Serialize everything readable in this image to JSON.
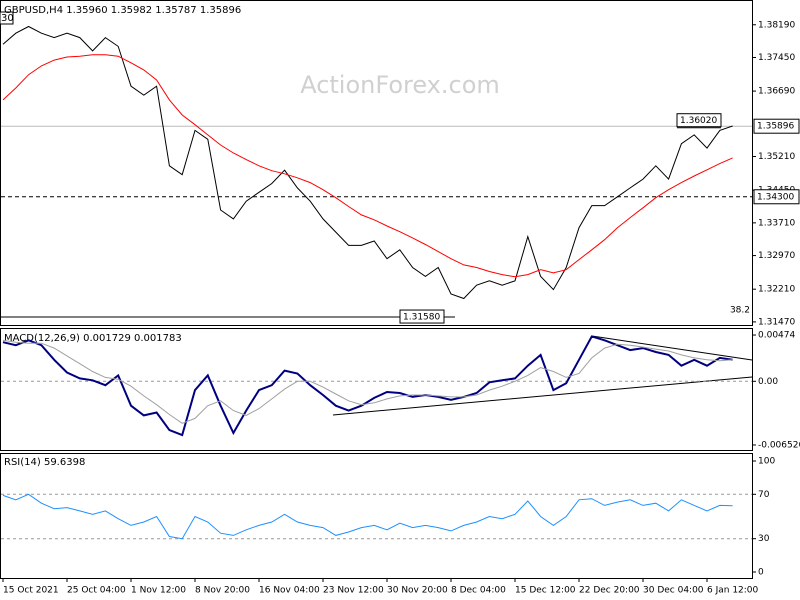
{
  "chart_data": [
    {
      "type": "line",
      "title": "GBPUSD,H4  1.35960 1.35982 1.35787 1.35896",
      "watermark": "ActionForex.com",
      "categories": [
        "15 Oct 2021",
        null,
        null,
        null,
        null,
        "25 Oct 04:00",
        null,
        null,
        null,
        null,
        "1 Nov 12:00",
        null,
        null,
        null,
        null,
        "8 Nov 20:00",
        null,
        null,
        null,
        null,
        "16 Nov 04:00",
        null,
        null,
        null,
        null,
        "23 Nov 12:00",
        null,
        null,
        null,
        null,
        "30 Nov 20:00",
        null,
        null,
        null,
        null,
        "8 Dec 04:00",
        null,
        null,
        null,
        null,
        "15 Dec 12:00",
        null,
        null,
        null,
        null,
        "22 Dec 20:00",
        null,
        null,
        null,
        null,
        "30 Dec 04:00",
        null,
        null,
        null,
        null,
        "6 Jan 12:00",
        null,
        null
      ],
      "series": [
        {
          "color": "#000000",
          "values": [
            1.3775,
            1.38,
            1.3815,
            1.38,
            1.379,
            1.38,
            1.379,
            1.376,
            1.379,
            1.377,
            1.368,
            1.366,
            1.368,
            1.35,
            1.348,
            1.358,
            1.356,
            1.34,
            1.338,
            1.342,
            1.344,
            1.346,
            1.349,
            1.345,
            1.342,
            1.338,
            1.335,
            1.332,
            1.332,
            1.333,
            1.329,
            1.331,
            1.327,
            1.325,
            1.327,
            1.321,
            1.32,
            1.323,
            1.324,
            1.323,
            1.324,
            1.334,
            1.325,
            1.322,
            1.327,
            1.336,
            1.341,
            1.341,
            1.343,
            1.345,
            1.347,
            1.35,
            1.347,
            1.355,
            1.357,
            1.354,
            1.358,
            1.359
          ]
        },
        {
          "color": "#ff0000",
          "values": [
            1.3649,
            1.3676,
            1.3706,
            1.3726,
            1.3739,
            1.3746,
            1.3748,
            1.3751,
            1.3751,
            1.3748,
            1.3733,
            1.3717,
            1.3694,
            1.3649,
            1.3615,
            1.3593,
            1.357,
            1.3547,
            1.3529,
            1.3514,
            1.35,
            1.3489,
            1.3482,
            1.3473,
            1.3462,
            1.3446,
            1.3428,
            1.3408,
            1.3389,
            1.3378,
            1.3364,
            1.3351,
            1.3337,
            1.3322,
            1.3306,
            1.329,
            1.3276,
            1.327,
            1.3261,
            1.3254,
            1.3249,
            1.3254,
            1.3265,
            1.3258,
            1.3265,
            1.3288,
            1.331,
            1.3333,
            1.336,
            1.3383,
            1.3405,
            1.3428,
            1.3446,
            1.3462,
            1.3477,
            1.3491,
            1.3505,
            1.3518
          ]
        }
      ],
      "ylim": [
        1.314,
        1.3875
      ],
      "yticks": [
        {
          "value": 1.3819,
          "label": "1.38190"
        },
        {
          "value": 1.3745,
          "label": "1.37450"
        },
        {
          "value": 1.3669,
          "label": "1.36690"
        },
        {
          "value": 1.3521,
          "label": "1.35210"
        },
        {
          "value": 1.3445,
          "label": "1.34450"
        },
        {
          "value": 1.3371,
          "label": "1.33710"
        },
        {
          "value": 1.3297,
          "label": "1.32970"
        },
        {
          "value": 1.3221,
          "label": "1.32210"
        },
        {
          "value": 1.3147,
          "label": "1.31470"
        }
      ],
      "hlines": [
        {
          "value": 1.35896,
          "label": "1.35896",
          "style": "solid"
        },
        {
          "value": 1.343,
          "label": "1.34300",
          "style": "dashed"
        }
      ],
      "annotations": [
        {
          "value": 1.3602,
          "label": "1.36020"
        },
        {
          "value": 1.3158,
          "label": "1.31580"
        }
      ],
      "fib_label": "38.2",
      "corner_label": "30"
    },
    {
      "type": "line",
      "title": "MACD(12,26,9) 0.001729 0.001783",
      "series": [
        {
          "color": "#000080",
          "values": [
            0.004,
            0.0037,
            0.0042,
            0.0037,
            0.0022,
            0.0009,
            0.0003,
            0.0001,
            -0.0004,
            0.0006,
            -0.0025,
            -0.0035,
            -0.0032,
            -0.005,
            -0.0055,
            -0.0009,
            0.0006,
            -0.0025,
            -0.0053,
            -0.003,
            -0.0009,
            -0.0004,
            0.0011,
            0.0008,
            -0.0004,
            -0.0014,
            -0.0025,
            -0.003,
            -0.0025,
            -0.0017,
            -0.0011,
            -0.0012,
            -0.0016,
            -0.0014,
            -0.0016,
            -0.0019,
            -0.0016,
            -0.0012,
            -0.0001,
            0.0001,
            0.0003,
            0.0016,
            0.0027,
            -0.0009,
            -0.0002,
            0.0022,
            0.0046,
            0.0042,
            0.0037,
            0.0032,
            0.0034,
            0.003,
            0.0027,
            0.0016,
            0.0022,
            0.0016,
            0.0024,
            0.0022
          ]
        },
        {
          "color": "#a0a0a0",
          "values": [
            0.0042,
            0.004,
            0.0039,
            0.0039,
            0.0034,
            0.0026,
            0.0018,
            0.001,
            0.0004,
            0.0002,
            -0.0005,
            -0.0015,
            -0.0024,
            -0.0034,
            -0.0043,
            -0.0038,
            -0.0025,
            -0.002,
            -0.003,
            -0.0035,
            -0.0028,
            -0.0018,
            -0.0008,
            0,
            0,
            -0.0006,
            -0.0013,
            -0.002,
            -0.0024,
            -0.0022,
            -0.0018,
            -0.0015,
            -0.0014,
            -0.0014,
            -0.0015,
            -0.0016,
            -0.0016,
            -0.0014,
            -0.0009,
            -0.0005,
            0,
            0.0006,
            0.0014,
            0.001,
            0.0004,
            0.0008,
            0.0024,
            0.0034,
            0.0038,
            0.0037,
            0.0035,
            0.0033,
            0.0031,
            0.0027,
            0.0024,
            0.0022,
            0.0021,
            0.0022
          ]
        }
      ],
      "ylim": [
        -0.00704,
        0.00546
      ],
      "yticks": [
        0.00474,
        {
          "value": 0,
          "label": "0.00"
        },
        -0.006526
      ],
      "levels": [
        0
      ]
    },
    {
      "type": "line",
      "title": "RSI(14) 59.6398",
      "series": [
        {
          "color": "#1e90ff",
          "values": [
            69,
            65,
            70,
            62,
            57,
            58,
            55,
            52,
            55,
            48,
            42,
            45,
            50,
            32,
            30,
            50,
            45,
            35,
            33,
            38,
            42,
            45,
            52,
            45,
            42,
            40,
            33,
            36,
            40,
            42,
            38,
            44,
            40,
            42,
            40,
            37,
            42,
            45,
            50,
            48,
            52,
            64,
            50,
            42,
            50,
            65,
            66,
            60,
            63,
            65,
            60,
            62,
            55,
            65,
            60,
            55,
            60,
            59.6
          ]
        }
      ],
      "ylim": [
        -5.4,
        107.2
      ],
      "yticks": [
        100,
        70,
        30,
        0
      ],
      "levels": [
        70,
        30
      ]
    }
  ]
}
